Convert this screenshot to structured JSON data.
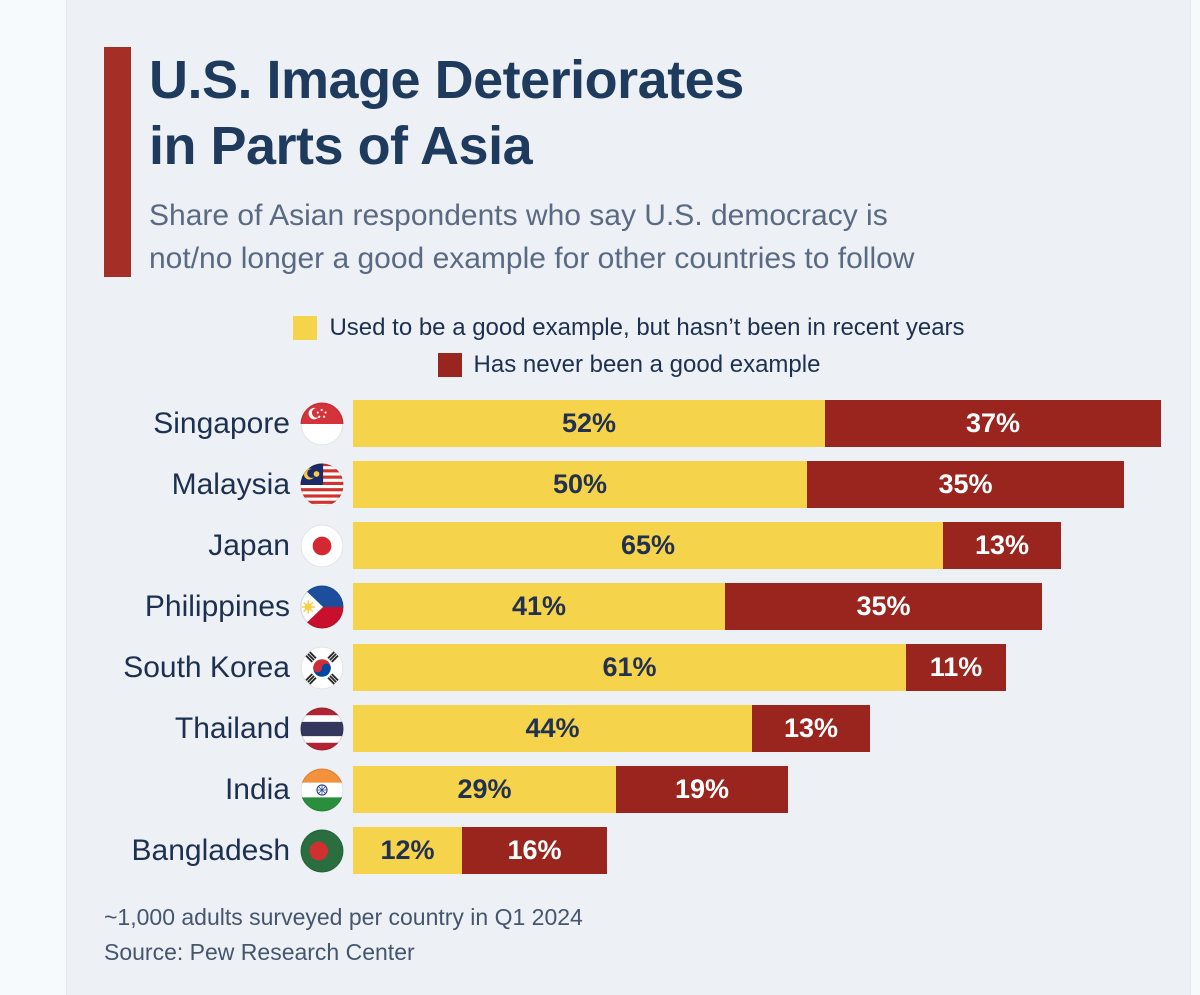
{
  "colors": {
    "background": "#edf1f6",
    "gutter": "#f7fafd",
    "accent_bar": "#a52f26",
    "title": "#1e3a5c",
    "subtitle": "#5a6a82",
    "text": "#1d3050",
    "bar_yellow": "#f5d44b",
    "bar_red": "#9a241e",
    "label_on_yellow": "#233150",
    "label_on_red": "#ffffff",
    "footer_text": "#45556d"
  },
  "header": {
    "title_line1": "U.S. Image Deteriorates",
    "title_line2": "in Parts of Asia",
    "subtitle_line1": "Share of Asian respondents who say U.S. democracy is",
    "subtitle_line2": "not/no longer a good example for other countries to follow"
  },
  "legend": [
    {
      "key": "used_to_be",
      "label": "Used to be a good example, but hasn’t been in recent years",
      "color": "#f5d44b"
    },
    {
      "key": "never_been",
      "label": "Has never been a good example",
      "color": "#9a241e"
    }
  ],
  "chart_data": {
    "type": "bar",
    "orientation": "horizontal",
    "stacked": true,
    "unit": "%",
    "xlim": [
      0,
      100
    ],
    "grid": false,
    "legend_position": "top-center",
    "title": "U.S. Image Deteriorates in Parts of Asia",
    "subtitle": "Share of Asian respondents who say U.S. democracy is not/no longer a good example for other countries to follow",
    "categories": [
      "Singapore",
      "Malaysia",
      "Japan",
      "Philippines",
      "South Korea",
      "Thailand",
      "India",
      "Bangladesh"
    ],
    "series": [
      {
        "name": "Used to be a good example, but hasn’t been in recent years",
        "color": "#f5d44b",
        "values": [
          52,
          50,
          65,
          41,
          61,
          44,
          29,
          12
        ]
      },
      {
        "name": "Has never been a good example",
        "color": "#9a241e",
        "values": [
          37,
          35,
          13,
          35,
          11,
          13,
          19,
          16
        ]
      }
    ],
    "rows": [
      {
        "country": "Singapore",
        "flag": "singapore-flag",
        "used_to_be": 52,
        "never_been": 37
      },
      {
        "country": "Malaysia",
        "flag": "malaysia-flag",
        "used_to_be": 50,
        "never_been": 35
      },
      {
        "country": "Japan",
        "flag": "japan-flag",
        "used_to_be": 65,
        "never_been": 13
      },
      {
        "country": "Philippines",
        "flag": "philippines-flag",
        "used_to_be": 41,
        "never_been": 35
      },
      {
        "country": "South Korea",
        "flag": "south-korea-flag",
        "used_to_be": 61,
        "never_been": 11
      },
      {
        "country": "Thailand",
        "flag": "thailand-flag",
        "used_to_be": 44,
        "never_been": 13
      },
      {
        "country": "India",
        "flag": "india-flag",
        "used_to_be": 29,
        "never_been": 19
      },
      {
        "country": "Bangladesh",
        "flag": "bangladesh-flag",
        "used_to_be": 12,
        "never_been": 16
      }
    ],
    "value_label_format": "{v}%"
  },
  "footer": {
    "note": "~1,000 adults surveyed per country in Q1 2024",
    "source": "Source: Pew Research Center"
  }
}
